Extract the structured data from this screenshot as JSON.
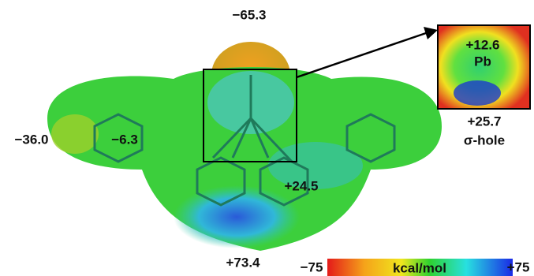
{
  "surface_labels": {
    "top": "−65.3",
    "left_outer": "−36.0",
    "left_inner": "−6.3",
    "center": "+24.5",
    "bottom": "+73.4"
  },
  "inset": {
    "value": "+12.6",
    "atom": "Pb",
    "below_value": "+25.7",
    "below_caption": "σ-hole"
  },
  "colorbar": {
    "min": "−75",
    "unit": "kcal/mol",
    "max": "+75"
  }
}
